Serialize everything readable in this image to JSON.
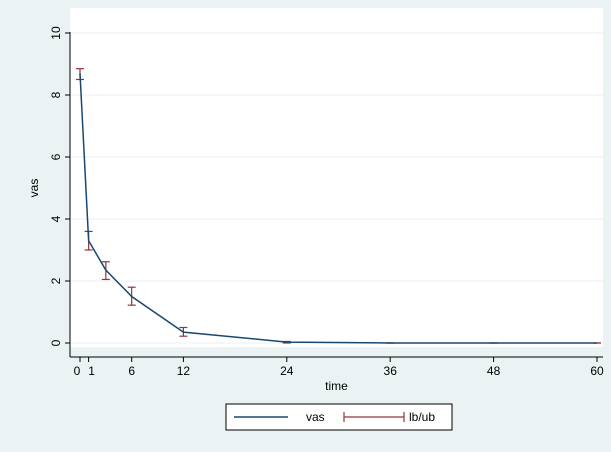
{
  "chart_data": {
    "type": "line",
    "xlabel": "time",
    "ylabel": "vas",
    "xlim": [
      0,
      60
    ],
    "ylim": [
      0,
      10
    ],
    "x_ticks": [
      0,
      1,
      6,
      12,
      24,
      36,
      48,
      60
    ],
    "x_tick_labels": [
      "0",
      "1",
      "6",
      "12",
      "24",
      "36",
      "48",
      "60"
    ],
    "y_ticks": [
      0,
      2,
      4,
      6,
      8,
      10
    ],
    "y_tick_labels": [
      "0",
      "2",
      "4",
      "6",
      "8",
      "10"
    ],
    "grid": true,
    "legend_position": "bottom-center",
    "colors": {
      "plot_background": "#ffffff",
      "outer_background": "#eaf2f3",
      "line": "#1a476f",
      "errorbar": "#90353b",
      "grid": "#eaf2f3"
    },
    "series": [
      {
        "name": "vas",
        "kind": "line",
        "x": [
          0,
          1,
          3,
          6,
          12,
          24,
          36,
          48,
          60
        ],
        "y": [
          8.7,
          3.3,
          2.35,
          1.5,
          0.35,
          0.03,
          0.0,
          0.0,
          0.0
        ]
      },
      {
        "name": "lb/ub",
        "kind": "errorbar",
        "x": [
          0,
          1,
          3,
          6,
          12,
          24,
          36,
          48,
          60
        ],
        "lb": [
          8.5,
          3.0,
          2.05,
          1.22,
          0.22,
          0.0,
          0.0,
          0.0,
          0.0
        ],
        "ub": [
          8.85,
          3.6,
          2.62,
          1.8,
          0.5,
          0.05,
          0.0,
          0.0,
          0.0
        ]
      }
    ]
  }
}
